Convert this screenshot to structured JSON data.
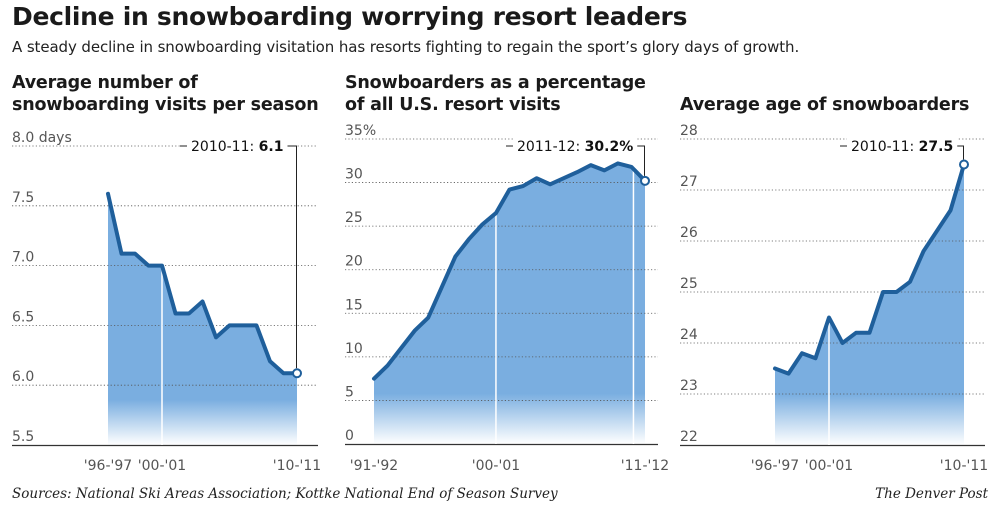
{
  "title": "Decline in snowboarding worrying resort leaders",
  "subtitle": "A steady decline in snowboarding visitation has resorts fighting to regain the sport’s glory days of growth.",
  "source": "Sources: National Ski Areas Association; Kottke National End of Season Survey",
  "credit": "The Denver Post",
  "colors": {
    "line": "#1f5f9b",
    "area": "#7aaee0",
    "grid": "#555555",
    "text": "#555555"
  },
  "chart_data": [
    {
      "type": "area",
      "title_lines": [
        "Average number of",
        "snowboarding visits per season"
      ],
      "xlabel": "",
      "ylabel": "",
      "ylim": [
        5.5,
        8.0
      ],
      "yticks": [
        5.5,
        6.0,
        6.5,
        7.0,
        7.5,
        8.0
      ],
      "ytick_labels": [
        "5.5",
        "6.0",
        "6.5",
        "7.0",
        "7.5",
        "8.0 days"
      ],
      "x": [
        "'96-'97",
        "'97-'98",
        "'98-'99",
        "'99-'00",
        "'00-'01",
        "'01-'02",
        "'02-'03",
        "'03-'04",
        "'04-'05",
        "'05-'06",
        "'06-'07",
        "'07-'08",
        "'08-'09",
        "'09-'10",
        "'10-'11"
      ],
      "values": [
        7.6,
        7.1,
        7.1,
        7.0,
        7.0,
        6.6,
        6.6,
        6.7,
        6.4,
        6.5,
        6.5,
        6.5,
        6.2,
        6.1,
        6.1
      ],
      "xtick_labels": [
        "'96-'97",
        "'00-'01",
        "'10-'11"
      ],
      "annotation": {
        "prefix": "2010-11:",
        "value": "6.1"
      },
      "grid": true
    },
    {
      "type": "area",
      "title_lines": [
        "Snowboarders as a percentage",
        "of all U.S. resort visits"
      ],
      "xlabel": "",
      "ylabel": "",
      "ylim": [
        0,
        35
      ],
      "yticks": [
        0,
        5,
        10,
        15,
        20,
        25,
        30,
        35
      ],
      "ytick_labels": [
        "0",
        "5",
        "10",
        "15",
        "20",
        "25",
        "30",
        "35%"
      ],
      "x": [
        "'91-'92",
        "'92-'93",
        "'93-'94",
        "'94-'95",
        "'95-'96",
        "'96-'97",
        "'97-'98",
        "'98-'99",
        "'99-'00",
        "'00-'01",
        "'01-'02",
        "'02-'03",
        "'03-'04",
        "'04-'05",
        "'05-'06",
        "'06-'07",
        "'07-'08",
        "'08-'09",
        "'09-'10",
        "'10-'11",
        "'11-'12"
      ],
      "values": [
        7.5,
        9.0,
        11.0,
        13.0,
        14.5,
        18.0,
        21.5,
        23.5,
        25.2,
        26.5,
        29.2,
        29.6,
        30.5,
        29.8,
        30.5,
        31.2,
        32.0,
        31.4,
        32.2,
        31.8,
        30.2
      ],
      "xtick_labels": [
        "'91-'92",
        "'00-'01",
        "'11-'12"
      ],
      "annotation": {
        "prefix": "2011-12:",
        "value": "30.2%"
      },
      "grid": true
    },
    {
      "type": "area",
      "title_lines": [
        "Average age of snowboarders"
      ],
      "xlabel": "",
      "ylabel": "",
      "ylim": [
        22,
        28
      ],
      "yticks": [
        22,
        23,
        24,
        25,
        26,
        27,
        28
      ],
      "ytick_labels": [
        "22",
        "23",
        "24",
        "25",
        "26",
        "27",
        "28"
      ],
      "x": [
        "'96-'97",
        "'97-'98",
        "'98-'99",
        "'99-'00",
        "'00-'01",
        "'01-'02",
        "'02-'03",
        "'03-'04",
        "'04-'05",
        "'05-'06",
        "'06-'07",
        "'07-'08",
        "'08-'09",
        "'09-'10",
        "'10-'11"
      ],
      "values": [
        23.5,
        23.4,
        23.8,
        23.7,
        24.5,
        24.0,
        24.2,
        24.2,
        25.0,
        25.0,
        25.2,
        25.8,
        26.2,
        26.6,
        27.5
      ],
      "xtick_labels": [
        "'96-'97",
        "'00-'01",
        "'10-'11"
      ],
      "annotation": {
        "prefix": "2010-11:",
        "value": "27.5"
      },
      "grid": true
    }
  ]
}
